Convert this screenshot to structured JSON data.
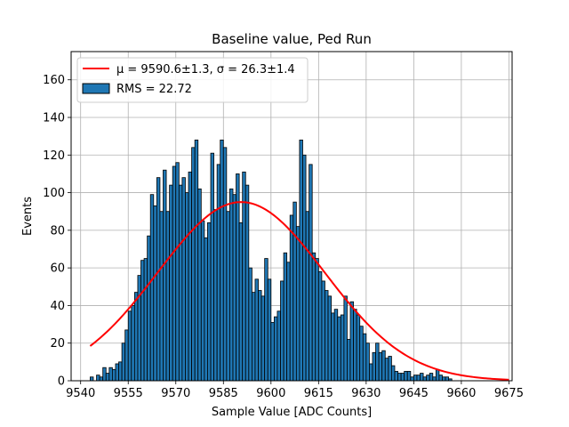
{
  "chart_data": {
    "type": "bar",
    "title": "Baseline value, Ped Run",
    "xlabel": "Sample Value [ADC Counts]",
    "ylabel": "Events",
    "xlim": [
      9537,
      9676
    ],
    "ylim": [
      0,
      175
    ],
    "xticks": [
      9540,
      9555,
      9570,
      9585,
      9600,
      9615,
      9630,
      9645,
      9660,
      9675
    ],
    "yticks": [
      0,
      20,
      40,
      60,
      80,
      100,
      120,
      140,
      160
    ],
    "grid": true,
    "legend_position": "top-left",
    "legend": [
      {
        "label": "μ = 9590.6±1.3, σ = 26.3±1.4",
        "kind": "line",
        "color": "#ff0000"
      },
      {
        "label": "RMS = 22.72",
        "kind": "patch",
        "color": "#1f77b4"
      }
    ],
    "histogram": {
      "bin_width": 1,
      "bin_start": 9543,
      "color": "#1f77b4",
      "edge_color": "#000000",
      "counts": [
        2,
        0,
        3,
        2,
        7,
        4,
        7,
        6,
        9,
        10,
        20,
        27,
        37,
        40,
        47,
        56,
        64,
        65,
        77,
        99,
        93,
        108,
        90,
        112,
        90,
        104,
        114,
        116,
        104,
        108,
        100,
        111,
        124,
        128,
        102,
        85,
        76,
        84,
        121,
        91,
        115,
        128,
        124,
        90,
        102,
        99,
        110,
        84,
        111,
        104,
        60,
        47,
        54,
        48,
        45,
        65,
        54,
        31,
        34,
        37,
        53,
        68,
        63,
        88,
        95,
        82,
        128,
        120,
        90,
        115,
        68,
        65,
        58,
        53,
        48,
        45,
        36,
        38,
        34,
        35,
        45,
        22,
        42,
        38,
        35,
        29,
        25,
        20,
        9,
        15,
        20,
        15,
        16,
        12,
        13,
        8,
        5,
        4,
        4,
        5,
        5,
        2,
        3,
        3,
        4,
        2,
        3,
        4,
        2,
        6,
        3,
        2,
        2,
        1
      ]
    },
    "fit_curve": {
      "type": "gaussian",
      "amplitude": 95,
      "mu": 9590.6,
      "sigma": 26.3,
      "x_range": [
        9543,
        9675
      ],
      "color": "#ff0000"
    }
  }
}
